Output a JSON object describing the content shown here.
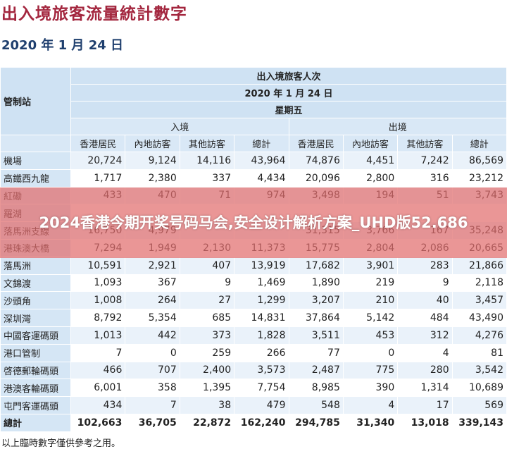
{
  "header": {
    "title": "出入境旅客流量統計數字",
    "date": "2020 年 1 月 24 日"
  },
  "table": {
    "station_header": "管制站",
    "group_header": "出入境旅客人次",
    "date": "2020 年 1 月 24 日",
    "weekday": "星期五",
    "arrival": "入境",
    "departure": "出境",
    "columns": [
      "香港居民",
      "內地訪客",
      "其他訪客",
      "總計",
      "香港居民",
      "內地訪客",
      "其他訪客",
      "總計"
    ],
    "rows": [
      {
        "label": "機場",
        "values": [
          "20,724",
          "9,124",
          "14,116",
          "43,964",
          "74,876",
          "4,451",
          "7,242",
          "86,569"
        ]
      },
      {
        "label": "高鐵西九龍",
        "values": [
          "1,717",
          "2,380",
          "337",
          "4,434",
          "20,096",
          "2,800",
          "316",
          "23,212"
        ]
      },
      {
        "label": "紅磡",
        "values": [
          "433",
          "470",
          "71",
          "974",
          "3,498",
          "194",
          "51",
          "3,743"
        ]
      },
      {
        "label": "羅湖",
        "values": [
          null,
          null,
          null,
          null,
          null,
          null,
          null,
          null
        ]
      },
      {
        "label": "落馬洲支線",
        "values": [
          "16,750",
          "4,979",
          null,
          null,
          "31,315",
          "3,766",
          "167",
          "35,248"
        ]
      },
      {
        "label": "港珠澳大橋",
        "values": [
          "7,294",
          "1,949",
          "2,130",
          "11,373",
          "15,775",
          "2,804",
          "2,086",
          "20,665"
        ]
      },
      {
        "label": "落馬洲",
        "values": [
          "10,591",
          "2,921",
          "407",
          "13,919",
          "17,682",
          "3,901",
          "283",
          "21,866"
        ]
      },
      {
        "label": "文錦渡",
        "values": [
          "1,093",
          "367",
          "9",
          "1,469",
          "1,890",
          "219",
          "9",
          "2,118"
        ]
      },
      {
        "label": "沙頭角",
        "values": [
          "1,008",
          "264",
          "27",
          "1,299",
          "3,207",
          "210",
          "40",
          "3,457"
        ]
      },
      {
        "label": "深圳灣",
        "values": [
          "8,792",
          "5,354",
          "685",
          "14,831",
          "37,864",
          "5,142",
          "484",
          "43,490"
        ]
      },
      {
        "label": "中國客運碼頭",
        "values": [
          "1,013",
          "442",
          "373",
          "1,828",
          "3,511",
          "453",
          "312",
          "4,276"
        ]
      },
      {
        "label": "港口管制",
        "values": [
          "7",
          "0",
          "259",
          "266",
          "77",
          "0",
          "4",
          "81"
        ]
      },
      {
        "label": "啓德郵輪碼頭",
        "values": [
          "466",
          "707",
          "2,400",
          "3,573",
          "2,487",
          "775",
          "280",
          "3,542"
        ]
      },
      {
        "label": "港澳客輪碼頭",
        "values": [
          "6,001",
          "358",
          "1,395",
          "7,754",
          "8,985",
          "390",
          "1,314",
          "10,689"
        ]
      },
      {
        "label": "屯門客運碼頭",
        "values": [
          "434",
          "7",
          "38",
          "479",
          "548",
          "4",
          "17",
          "569"
        ]
      },
      {
        "label": "總計",
        "values": [
          "102,663",
          "36,705",
          "22,872",
          "162,240",
          "294,785",
          "31,340",
          "13,018",
          "339,143"
        ]
      }
    ]
  },
  "footer": "以上臨時數字僅供參考之用。",
  "banner": "2024香港今期开奖号码马会,安全设计解析方案_UHD版52.686"
}
